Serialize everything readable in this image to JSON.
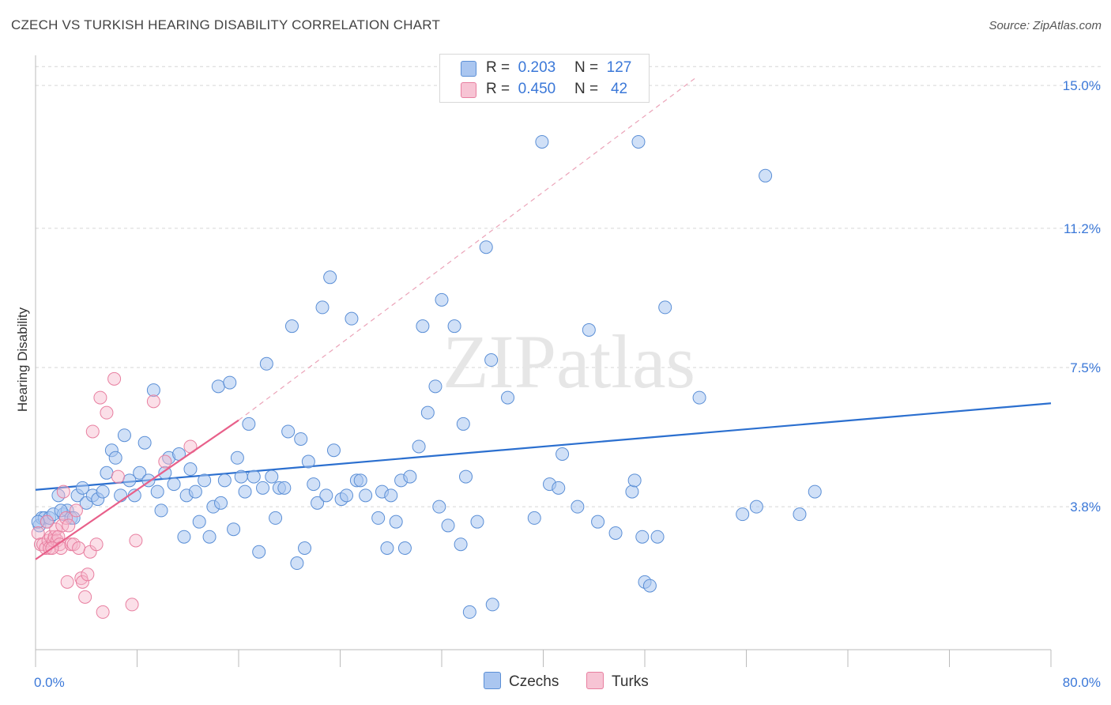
{
  "header": {
    "title": "CZECH VS TURKISH HEARING DISABILITY CORRELATION CHART",
    "source": "Source: ZipAtlas.com"
  },
  "legend": {
    "czechs": {
      "r_label": "R =",
      "r_value": "0.203",
      "n_label": "N =",
      "n_value": "127"
    },
    "turks": {
      "r_label": "R =",
      "r_value": "0.450",
      "n_label": "N =",
      "n_value": "42"
    },
    "bottom": [
      "Czechs",
      "Turks"
    ]
  },
  "colors": {
    "czech_fill": "#aac6f0",
    "czech_stroke": "#5b8fd6",
    "czech_line": "#2b6fcf",
    "turk_fill": "#f7b9cc",
    "turk_stroke": "#e87fa0",
    "turk_line": "#e8608a",
    "tick_label": "#3b78d8",
    "grid": "#d6d6d6"
  },
  "chart_data": {
    "type": "scatter",
    "title": "CZECH VS TURKISH HEARING DISABILITY CORRELATION CHART",
    "xlabel": "",
    "ylabel": "Hearing Disability",
    "xlim": [
      0,
      80
    ],
    "ylim": [
      0,
      15.8
    ],
    "x_tick_labels": [
      "0.0%",
      "80.0%"
    ],
    "y_ticks": [
      3.8,
      7.5,
      11.2,
      15.0
    ],
    "y_tick_labels": [
      "3.8%",
      "7.5%",
      "11.2%",
      "15.0%"
    ],
    "watermark": "ZIPatlas",
    "series": [
      {
        "name": "Czechs",
        "r": 0.203,
        "n": 127,
        "trend": {
          "x": [
            0,
            80
          ],
          "y": [
            4.25,
            6.55
          ],
          "style": "solid"
        },
        "points": [
          [
            0.3,
            3.3
          ],
          [
            0.5,
            3.5
          ],
          [
            0.7,
            3.5
          ],
          [
            0.9,
            3.4
          ],
          [
            1.1,
            3.5
          ],
          [
            1.4,
            3.6
          ],
          [
            1.8,
            4.1
          ],
          [
            2.2,
            3.6
          ],
          [
            2.5,
            3.7
          ],
          [
            2.8,
            3.5
          ],
          [
            3.3,
            4.1
          ],
          [
            3.7,
            4.3
          ],
          [
            4.0,
            3.9
          ],
          [
            4.5,
            4.1
          ],
          [
            4.9,
            4.0
          ],
          [
            5.3,
            4.2
          ],
          [
            5.6,
            4.7
          ],
          [
            6.0,
            5.3
          ],
          [
            6.3,
            5.1
          ],
          [
            6.7,
            4.1
          ],
          [
            7.0,
            5.7
          ],
          [
            7.4,
            4.5
          ],
          [
            7.8,
            4.1
          ],
          [
            8.2,
            4.7
          ],
          [
            8.6,
            5.5
          ],
          [
            8.9,
            4.5
          ],
          [
            9.3,
            6.9
          ],
          [
            9.6,
            4.2
          ],
          [
            9.9,
            3.7
          ],
          [
            10.2,
            4.7
          ],
          [
            10.5,
            5.1
          ],
          [
            10.9,
            4.4
          ],
          [
            11.3,
            5.2
          ],
          [
            11.7,
            3.0
          ],
          [
            11.9,
            4.1
          ],
          [
            12.2,
            4.8
          ],
          [
            12.6,
            4.2
          ],
          [
            12.9,
            3.4
          ],
          [
            13.3,
            4.5
          ],
          [
            13.7,
            3.0
          ],
          [
            14.0,
            3.8
          ],
          [
            14.4,
            7.0
          ],
          [
            14.6,
            3.9
          ],
          [
            14.9,
            4.5
          ],
          [
            15.3,
            7.1
          ],
          [
            15.6,
            3.2
          ],
          [
            15.9,
            5.1
          ],
          [
            16.2,
            4.6
          ],
          [
            16.5,
            4.2
          ],
          [
            16.8,
            6.0
          ],
          [
            17.2,
            4.6
          ],
          [
            17.6,
            2.6
          ],
          [
            17.9,
            4.3
          ],
          [
            18.2,
            7.6
          ],
          [
            18.6,
            4.6
          ],
          [
            18.9,
            3.5
          ],
          [
            19.2,
            4.3
          ],
          [
            19.6,
            4.3
          ],
          [
            19.9,
            5.8
          ],
          [
            20.2,
            8.6
          ],
          [
            20.6,
            2.3
          ],
          [
            20.9,
            5.6
          ],
          [
            21.2,
            2.7
          ],
          [
            21.5,
            5.0
          ],
          [
            21.9,
            4.4
          ],
          [
            22.2,
            3.9
          ],
          [
            22.6,
            9.1
          ],
          [
            22.9,
            4.1
          ],
          [
            23.2,
            9.9
          ],
          [
            23.5,
            5.3
          ],
          [
            24.1,
            4.0
          ],
          [
            24.5,
            4.1
          ],
          [
            24.9,
            8.8
          ],
          [
            25.3,
            4.5
          ],
          [
            25.6,
            4.5
          ],
          [
            26.0,
            4.1
          ],
          [
            27.0,
            3.5
          ],
          [
            27.3,
            4.2
          ],
          [
            27.7,
            2.7
          ],
          [
            28.0,
            4.1
          ],
          [
            28.4,
            3.4
          ],
          [
            28.8,
            4.5
          ],
          [
            29.1,
            2.7
          ],
          [
            29.5,
            4.6
          ],
          [
            30.2,
            5.4
          ],
          [
            30.5,
            8.6
          ],
          [
            30.9,
            6.3
          ],
          [
            31.5,
            7.0
          ],
          [
            31.8,
            3.8
          ],
          [
            32.0,
            9.3
          ],
          [
            32.5,
            3.3
          ],
          [
            33.0,
            8.6
          ],
          [
            33.5,
            2.8
          ],
          [
            33.7,
            6.0
          ],
          [
            33.9,
            4.6
          ],
          [
            34.2,
            1.0
          ],
          [
            34.8,
            3.4
          ],
          [
            35.5,
            10.7
          ],
          [
            35.9,
            7.7
          ],
          [
            36.0,
            1.2
          ],
          [
            37.2,
            6.7
          ],
          [
            39.3,
            3.5
          ],
          [
            39.9,
            13.5
          ],
          [
            40.5,
            4.4
          ],
          [
            41.2,
            4.3
          ],
          [
            41.5,
            5.2
          ],
          [
            42.7,
            3.8
          ],
          [
            43.6,
            8.5
          ],
          [
            44.3,
            3.4
          ],
          [
            45.7,
            3.1
          ],
          [
            47.0,
            4.2
          ],
          [
            47.2,
            4.5
          ],
          [
            47.5,
            13.5
          ],
          [
            47.8,
            3.0
          ],
          [
            48.0,
            1.8
          ],
          [
            48.4,
            1.7
          ],
          [
            49.0,
            3.0
          ],
          [
            49.6,
            9.1
          ],
          [
            52.3,
            6.7
          ],
          [
            55.7,
            3.6
          ],
          [
            56.8,
            3.8
          ],
          [
            57.5,
            12.6
          ],
          [
            60.2,
            3.6
          ],
          [
            61.4,
            4.2
          ],
          [
            0.2,
            3.4
          ],
          [
            2.0,
            3.7
          ],
          [
            3.0,
            3.5
          ]
        ]
      },
      {
        "name": "Turks",
        "r": 0.45,
        "n": 42,
        "trend": {
          "x": [
            0,
            16
          ],
          "y": [
            2.4,
            6.1
          ],
          "style": "solid"
        },
        "trend_extension": {
          "x": [
            16,
            52
          ],
          "y": [
            6.1,
            15.2
          ],
          "style": "dashed"
        },
        "points": [
          [
            0.2,
            3.1
          ],
          [
            0.4,
            2.8
          ],
          [
            0.6,
            2.8
          ],
          [
            0.8,
            2.7
          ],
          [
            1.0,
            2.9
          ],
          [
            1.1,
            2.7
          ],
          [
            1.2,
            3.0
          ],
          [
            1.4,
            2.9
          ],
          [
            1.5,
            3.0
          ],
          [
            1.6,
            3.2
          ],
          [
            1.7,
            2.9
          ],
          [
            1.8,
            3.0
          ],
          [
            1.9,
            2.8
          ],
          [
            2.0,
            2.7
          ],
          [
            2.1,
            3.3
          ],
          [
            2.2,
            4.2
          ],
          [
            2.4,
            3.5
          ],
          [
            2.6,
            3.3
          ],
          [
            2.8,
            2.8
          ],
          [
            3.0,
            2.8
          ],
          [
            3.2,
            3.7
          ],
          [
            3.4,
            2.7
          ],
          [
            3.6,
            1.9
          ],
          [
            3.7,
            1.8
          ],
          [
            3.9,
            1.4
          ],
          [
            4.1,
            2.0
          ],
          [
            4.3,
            2.6
          ],
          [
            4.5,
            5.8
          ],
          [
            4.8,
            2.8
          ],
          [
            5.1,
            6.7
          ],
          [
            5.3,
            1.0
          ],
          [
            5.6,
            6.3
          ],
          [
            6.2,
            7.2
          ],
          [
            6.5,
            4.6
          ],
          [
            7.6,
            1.2
          ],
          [
            7.9,
            2.9
          ],
          [
            9.3,
            6.6
          ],
          [
            10.2,
            5.0
          ],
          [
            12.2,
            5.4
          ],
          [
            2.5,
            1.8
          ],
          [
            1.3,
            2.7
          ],
          [
            0.9,
            3.4
          ]
        ]
      }
    ]
  }
}
